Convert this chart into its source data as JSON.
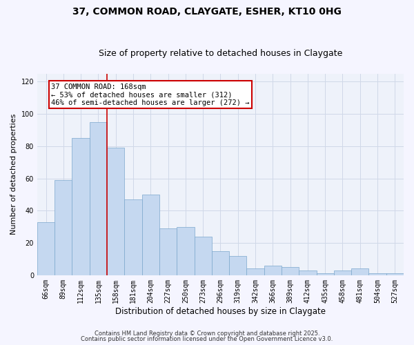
{
  "title1": "37, COMMON ROAD, CLAYGATE, ESHER, KT10 0HG",
  "title2": "Size of property relative to detached houses in Claygate",
  "xlabel": "Distribution of detached houses by size in Claygate",
  "ylabel": "Number of detached properties",
  "categories": [
    "66sqm",
    "89sqm",
    "112sqm",
    "135sqm",
    "158sqm",
    "181sqm",
    "204sqm",
    "227sqm",
    "250sqm",
    "273sqm",
    "296sqm",
    "319sqm",
    "342sqm",
    "366sqm",
    "389sqm",
    "412sqm",
    "435sqm",
    "458sqm",
    "481sqm",
    "504sqm",
    "527sqm"
  ],
  "values": [
    33,
    59,
    85,
    95,
    79,
    47,
    50,
    29,
    30,
    24,
    15,
    12,
    4,
    6,
    5,
    3,
    1,
    3,
    4,
    1,
    1
  ],
  "bar_color": "#c5d8f0",
  "bar_edge_color": "#7ba7cc",
  "vline_pos": 4.5,
  "vline_color": "#cc0000",
  "annotation_text": "37 COMMON ROAD: 168sqm\n← 53% of detached houses are smaller (312)\n46% of semi-detached houses are larger (272) →",
  "ylim": [
    0,
    125
  ],
  "yticks": [
    0,
    20,
    40,
    60,
    80,
    100,
    120
  ],
  "grid_color": "#d0d8e8",
  "bg_color": "#eef2fa",
  "fig_bg_color": "#f5f5ff",
  "footer1": "Contains HM Land Registry data © Crown copyright and database right 2025.",
  "footer2": "Contains public sector information licensed under the Open Government Licence v3.0.",
  "title1_fontsize": 10,
  "title2_fontsize": 9,
  "tick_fontsize": 7,
  "ylabel_fontsize": 8,
  "xlabel_fontsize": 8.5,
  "footer_fontsize": 6,
  "ann_fontsize": 7.5
}
